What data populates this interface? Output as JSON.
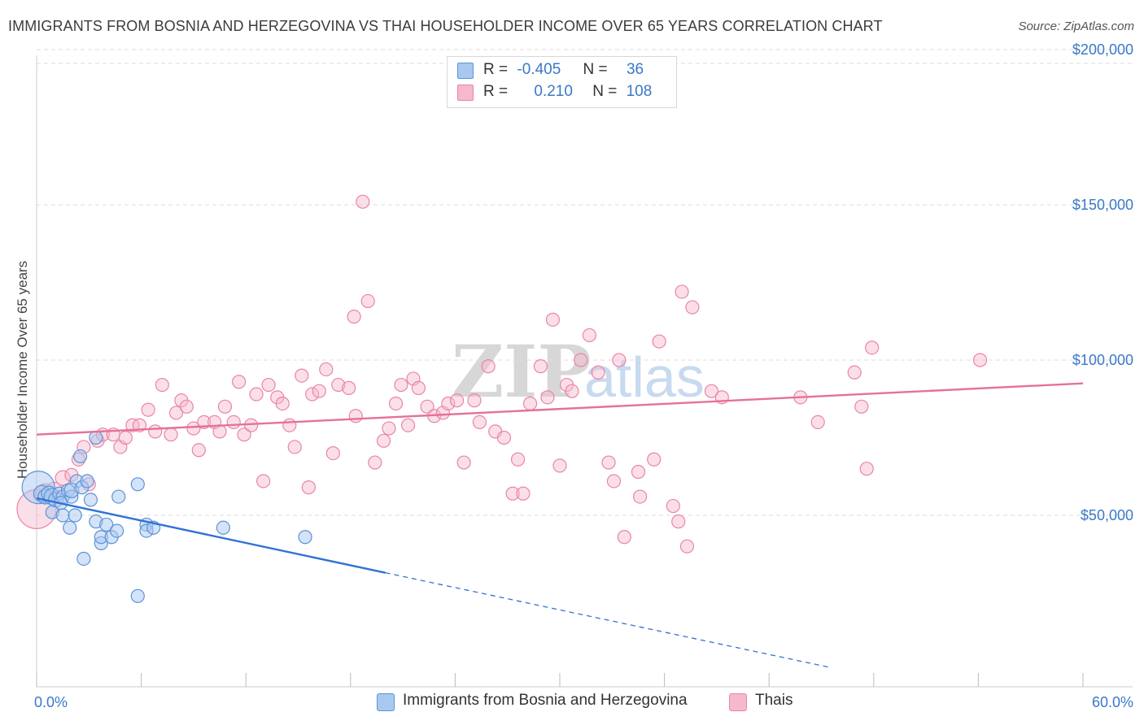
{
  "title": "IMMIGRANTS FROM BOSNIA AND HERZEGOVINA VS THAI HOUSEHOLDER INCOME OVER 65 YEARS CORRELATION CHART",
  "source": "Source: ZipAtlas.com",
  "watermark": {
    "zip": "ZIP",
    "atlas": "atlas"
  },
  "legend": {
    "r_label": "R =",
    "n_label": "N =",
    "rows": [
      {
        "r": "-0.405",
        "n": "36",
        "color": "#a9c8f0"
      },
      {
        "r": "0.210",
        "n": "108",
        "color": "#f6b8cb"
      }
    ]
  },
  "bottom_legend": [
    "Immigrants from Bosnia and Herzegovina",
    "Thais"
  ],
  "colors": {
    "blue_fill": "#a9c8f0",
    "blue_stroke": "#5b93d9",
    "blue_line": "#2f72d6",
    "pink_fill": "#f6b8cb",
    "pink_stroke": "#e985a5",
    "pink_line": "#e5719a",
    "axis_text": "#3a78c9",
    "grid": "#dddddd"
  },
  "chart_data": {
    "type": "scatter",
    "title": "IMMIGRANTS FROM BOSNIA AND HERZEGOVINA VS THAI HOUSEHOLDER INCOME OVER 65 YEARS CORRELATION CHART",
    "xlabel": "",
    "ylabel": "Householder Income Over 65 years",
    "xlim": [
      0,
      60
    ],
    "ylim": [
      0,
      210000
    ],
    "x_tick_labels": [
      "0.0%",
      "60.0%"
    ],
    "y_ticks": [
      50000,
      100000,
      150000,
      200000
    ],
    "y_tick_labels": [
      "$50,000",
      "$100,000",
      "$150,000",
      "$200,000"
    ],
    "grid": true,
    "legend_placement": "top-center",
    "series": [
      {
        "name": "Immigrants from Bosnia and Herzegovina",
        "R": -0.405,
        "N": 36,
        "trend": {
          "x0": 0,
          "y0": 55500,
          "x1": 20,
          "y1": 31500,
          "dash_to_x": 45.5,
          "dash_to_y": 1000
        },
        "points": [
          [
            0.1,
            59000,
            20
          ],
          [
            0.3,
            57000,
            10
          ],
          [
            0.5,
            56000,
            9
          ],
          [
            0.7,
            57000,
            9
          ],
          [
            0.9,
            56000,
            10
          ],
          [
            1.1,
            55000,
            9
          ],
          [
            1.3,
            57000,
            8
          ],
          [
            1.5,
            56000,
            8
          ],
          [
            1.8,
            58000,
            8
          ],
          [
            2.0,
            56000,
            8
          ],
          [
            2.3,
            61000,
            8
          ],
          [
            0.9,
            51000,
            8
          ],
          [
            1.4,
            54000,
            8
          ],
          [
            1.5,
            50000,
            8
          ],
          [
            1.9,
            46000,
            8
          ],
          [
            2.2,
            50000,
            8
          ],
          [
            2.0,
            58000,
            9
          ],
          [
            2.6,
            59000,
            8
          ],
          [
            2.9,
            61000,
            8
          ],
          [
            3.1,
            55000,
            8
          ],
          [
            3.4,
            48000,
            8
          ],
          [
            3.7,
            41000,
            8
          ],
          [
            3.7,
            43000,
            8
          ],
          [
            4.0,
            47000,
            8
          ],
          [
            4.3,
            43000,
            8
          ],
          [
            4.6,
            45000,
            8
          ],
          [
            3.4,
            75000,
            8
          ],
          [
            2.5,
            69000,
            8
          ],
          [
            4.7,
            56000,
            8
          ],
          [
            5.8,
            24000,
            8
          ],
          [
            2.7,
            36000,
            8
          ],
          [
            5.8,
            60000,
            8
          ],
          [
            6.3,
            47000,
            8
          ],
          [
            6.3,
            45000,
            8
          ],
          [
            6.7,
            46000,
            8
          ],
          [
            10.7,
            46000,
            8
          ],
          [
            15.4,
            43000,
            8
          ]
        ]
      },
      {
        "name": "Thais",
        "R": 0.21,
        "N": 108,
        "trend": {
          "x0": 0,
          "y0": 76000,
          "x1": 60,
          "y1": 92500
        },
        "points": [
          [
            0.0,
            52000,
            24
          ],
          [
            0.5,
            57000,
            12
          ],
          [
            1.0,
            58000,
            10
          ],
          [
            1.5,
            62000,
            9
          ],
          [
            2.0,
            63000,
            8
          ],
          [
            2.4,
            68000,
            8
          ],
          [
            2.7,
            72000,
            8
          ],
          [
            3.0,
            60000,
            8
          ],
          [
            3.5,
            74000,
            8
          ],
          [
            3.8,
            76000,
            8
          ],
          [
            4.4,
            76000,
            8
          ],
          [
            4.8,
            72000,
            8
          ],
          [
            5.1,
            75000,
            8
          ],
          [
            5.5,
            79000,
            8
          ],
          [
            5.9,
            79000,
            8
          ],
          [
            6.4,
            84000,
            8
          ],
          [
            6.8,
            77000,
            8
          ],
          [
            7.2,
            92000,
            8
          ],
          [
            7.7,
            76000,
            8
          ],
          [
            8.0,
            83000,
            8
          ],
          [
            8.3,
            87000,
            8
          ],
          [
            8.6,
            85000,
            8
          ],
          [
            9.0,
            78000,
            8
          ],
          [
            9.3,
            71000,
            8
          ],
          [
            9.6,
            80000,
            8
          ],
          [
            10.2,
            80000,
            8
          ],
          [
            10.5,
            77000,
            8
          ],
          [
            10.8,
            85000,
            8
          ],
          [
            11.3,
            80000,
            8
          ],
          [
            11.6,
            93000,
            8
          ],
          [
            11.9,
            76000,
            8
          ],
          [
            12.3,
            79000,
            8
          ],
          [
            12.6,
            89000,
            8
          ],
          [
            13.0,
            61000,
            8
          ],
          [
            13.3,
            92000,
            8
          ],
          [
            13.8,
            88000,
            8
          ],
          [
            14.1,
            86000,
            8
          ],
          [
            14.5,
            79000,
            8
          ],
          [
            14.8,
            72000,
            8
          ],
          [
            15.2,
            95000,
            8
          ],
          [
            15.6,
            59000,
            8
          ],
          [
            15.8,
            89000,
            8
          ],
          [
            16.2,
            90000,
            8
          ],
          [
            16.6,
            97000,
            8
          ],
          [
            17.0,
            70000,
            8
          ],
          [
            17.3,
            92000,
            8
          ],
          [
            17.9,
            91000,
            8
          ],
          [
            18.3,
            82000,
            8
          ],
          [
            18.2,
            114000,
            8
          ],
          [
            18.7,
            151000,
            8
          ],
          [
            19.0,
            119000,
            8
          ],
          [
            19.4,
            67000,
            8
          ],
          [
            19.9,
            74000,
            8
          ],
          [
            20.2,
            78000,
            8
          ],
          [
            20.6,
            86000,
            8
          ],
          [
            20.9,
            92000,
            8
          ],
          [
            21.3,
            79000,
            8
          ],
          [
            21.6,
            94000,
            8
          ],
          [
            21.9,
            91000,
            8
          ],
          [
            22.4,
            85000,
            8
          ],
          [
            22.8,
            82000,
            8
          ],
          [
            23.3,
            83000,
            8
          ],
          [
            23.6,
            86000,
            8
          ],
          [
            24.1,
            87000,
            8
          ],
          [
            24.5,
            67000,
            8
          ],
          [
            25.1,
            87000,
            8
          ],
          [
            25.4,
            80000,
            8
          ],
          [
            25.9,
            98000,
            8
          ],
          [
            26.3,
            77000,
            8
          ],
          [
            26.8,
            75000,
            8
          ],
          [
            27.3,
            57000,
            8
          ],
          [
            27.6,
            68000,
            8
          ],
          [
            27.9,
            57000,
            8
          ],
          [
            28.3,
            86000,
            8
          ],
          [
            28.9,
            98000,
            8
          ],
          [
            29.3,
            88000,
            8
          ],
          [
            29.6,
            113000,
            8
          ],
          [
            30.0,
            66000,
            8
          ],
          [
            30.4,
            92000,
            8
          ],
          [
            30.7,
            90000,
            8
          ],
          [
            31.2,
            100000,
            8
          ],
          [
            31.7,
            108000,
            8
          ],
          [
            32.2,
            96000,
            8
          ],
          [
            32.8,
            67000,
            8
          ],
          [
            33.1,
            61000,
            8
          ],
          [
            33.4,
            100000,
            8
          ],
          [
            33.7,
            43000,
            8
          ],
          [
            34.6,
            56000,
            8
          ],
          [
            34.5,
            64000,
            8
          ],
          [
            35.4,
            68000,
            8
          ],
          [
            35.7,
            106000,
            8
          ],
          [
            36.5,
            53000,
            8
          ],
          [
            36.8,
            48000,
            8
          ],
          [
            37.0,
            122000,
            8
          ],
          [
            37.3,
            40000,
            8
          ],
          [
            37.6,
            117000,
            8
          ],
          [
            38.7,
            90000,
            8
          ],
          [
            39.3,
            88000,
            8
          ],
          [
            43.8,
            88000,
            8
          ],
          [
            44.8,
            80000,
            8
          ],
          [
            46.9,
            96000,
            8
          ],
          [
            47.3,
            85000,
            8
          ],
          [
            47.6,
            65000,
            8
          ],
          [
            47.9,
            104000,
            8
          ],
          [
            54.1,
            100000,
            8
          ]
        ]
      }
    ]
  }
}
